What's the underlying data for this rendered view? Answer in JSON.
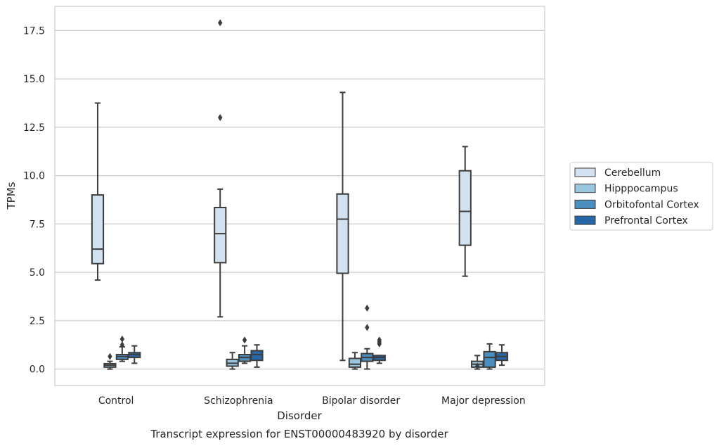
{
  "chart_data": {
    "type": "box",
    "caption": "Transcript expression for ENST00000483920 by disorder",
    "xlabel": "Disorder",
    "ylabel": "TPMs",
    "ylim": [
      -0.85,
      18.75
    ],
    "yticks": [
      "0.0",
      "2.5",
      "5.0",
      "7.5",
      "10.0",
      "12.5",
      "15.0",
      "17.5"
    ],
    "ytick_values": [
      0,
      2.5,
      5,
      7.5,
      10,
      12.5,
      15,
      17.5
    ],
    "grid": "horizontal",
    "legend_position": "right",
    "categories": [
      "Control",
      "Schizophrenia",
      "Bipolar disorder",
      "Major depression"
    ],
    "series": [
      {
        "name": "Cerebellum",
        "color": "#d3e2f1",
        "boxes": [
          {
            "whisker_low": 4.6,
            "q1": 5.45,
            "median": 6.2,
            "q3": 9.0,
            "whisker_high": 13.75,
            "outliers": []
          },
          {
            "whisker_low": 2.7,
            "q1": 5.5,
            "median": 7.0,
            "q3": 8.35,
            "whisker_high": 9.3,
            "outliers": [
              13.0,
              17.9
            ]
          },
          {
            "whisker_low": 0.45,
            "q1": 4.95,
            "median": 7.75,
            "q3": 9.05,
            "whisker_high": 14.3,
            "outliers": []
          },
          {
            "whisker_low": 4.8,
            "q1": 6.4,
            "median": 8.15,
            "q3": 10.25,
            "whisker_high": 11.5,
            "outliers": []
          }
        ]
      },
      {
        "name": "Hipppocampus",
        "color": "#9ac5de",
        "boxes": [
          {
            "whisker_low": 0.0,
            "q1": 0.1,
            "median": 0.2,
            "q3": 0.28,
            "whisker_high": 0.4,
            "outliers": [
              0.65
            ]
          },
          {
            "whisker_low": 0.0,
            "q1": 0.15,
            "median": 0.3,
            "q3": 0.5,
            "whisker_high": 0.85,
            "outliers": []
          },
          {
            "whisker_low": 0.0,
            "q1": 0.1,
            "median": 0.25,
            "q3": 0.55,
            "whisker_high": 0.85,
            "outliers": []
          },
          {
            "whisker_low": 0.0,
            "q1": 0.1,
            "median": 0.25,
            "q3": 0.4,
            "whisker_high": 0.7,
            "outliers": [
              0.15
            ]
          }
        ]
      },
      {
        "name": "Orbitofontal Cortex",
        "color": "#4b8fbf",
        "boxes": [
          {
            "whisker_low": 0.4,
            "q1": 0.5,
            "median": 0.65,
            "q3": 0.75,
            "whisker_high": 1.15,
            "outliers": [
              1.25,
              1.55
            ]
          },
          {
            "whisker_low": 0.3,
            "q1": 0.4,
            "median": 0.6,
            "q3": 0.75,
            "whisker_high": 1.2,
            "outliers": [
              1.5
            ]
          },
          {
            "whisker_low": 0.0,
            "q1": 0.4,
            "median": 0.6,
            "q3": 0.8,
            "whisker_high": 1.05,
            "outliers": [
              2.15,
              3.15
            ]
          },
          {
            "whisker_low": 0.0,
            "q1": 0.1,
            "median": 0.6,
            "q3": 0.9,
            "whisker_high": 1.3,
            "outliers": []
          }
        ]
      },
      {
        "name": "Prefrontal Cortex",
        "color": "#2767a8",
        "boxes": [
          {
            "whisker_low": 0.3,
            "q1": 0.6,
            "median": 0.75,
            "q3": 0.85,
            "whisker_high": 1.2,
            "outliers": []
          },
          {
            "whisker_low": 0.1,
            "q1": 0.45,
            "median": 0.75,
            "q3": 0.95,
            "whisker_high": 1.25,
            "outliers": []
          },
          {
            "whisker_low": 0.3,
            "q1": 0.45,
            "median": 0.6,
            "q3": 0.7,
            "whisker_high": 0.7,
            "outliers": [
              1.3,
              1.4,
              1.5
            ]
          },
          {
            "whisker_low": 0.2,
            "q1": 0.45,
            "median": 0.65,
            "q3": 0.85,
            "whisker_high": 1.25,
            "outliers": []
          }
        ]
      }
    ]
  }
}
